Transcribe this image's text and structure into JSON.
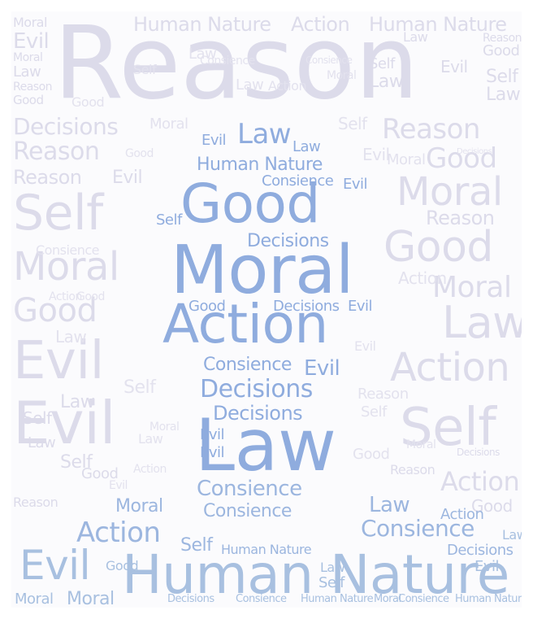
{
  "words": {
    "reason": "Reason",
    "moral": "Moral",
    "evil": "Evil",
    "good": "Good",
    "law": "Law",
    "self": "Self",
    "action": "Action",
    "decisions": "Decisions",
    "consience": "Consience",
    "human_nature": "Human Nature"
  },
  "colors": {
    "frame_background": "#fbfbfd",
    "background_words": "#dcdbea",
    "figure_words_blue": "#8facde",
    "figure_words_lightblue": "#a8c0e0"
  }
}
